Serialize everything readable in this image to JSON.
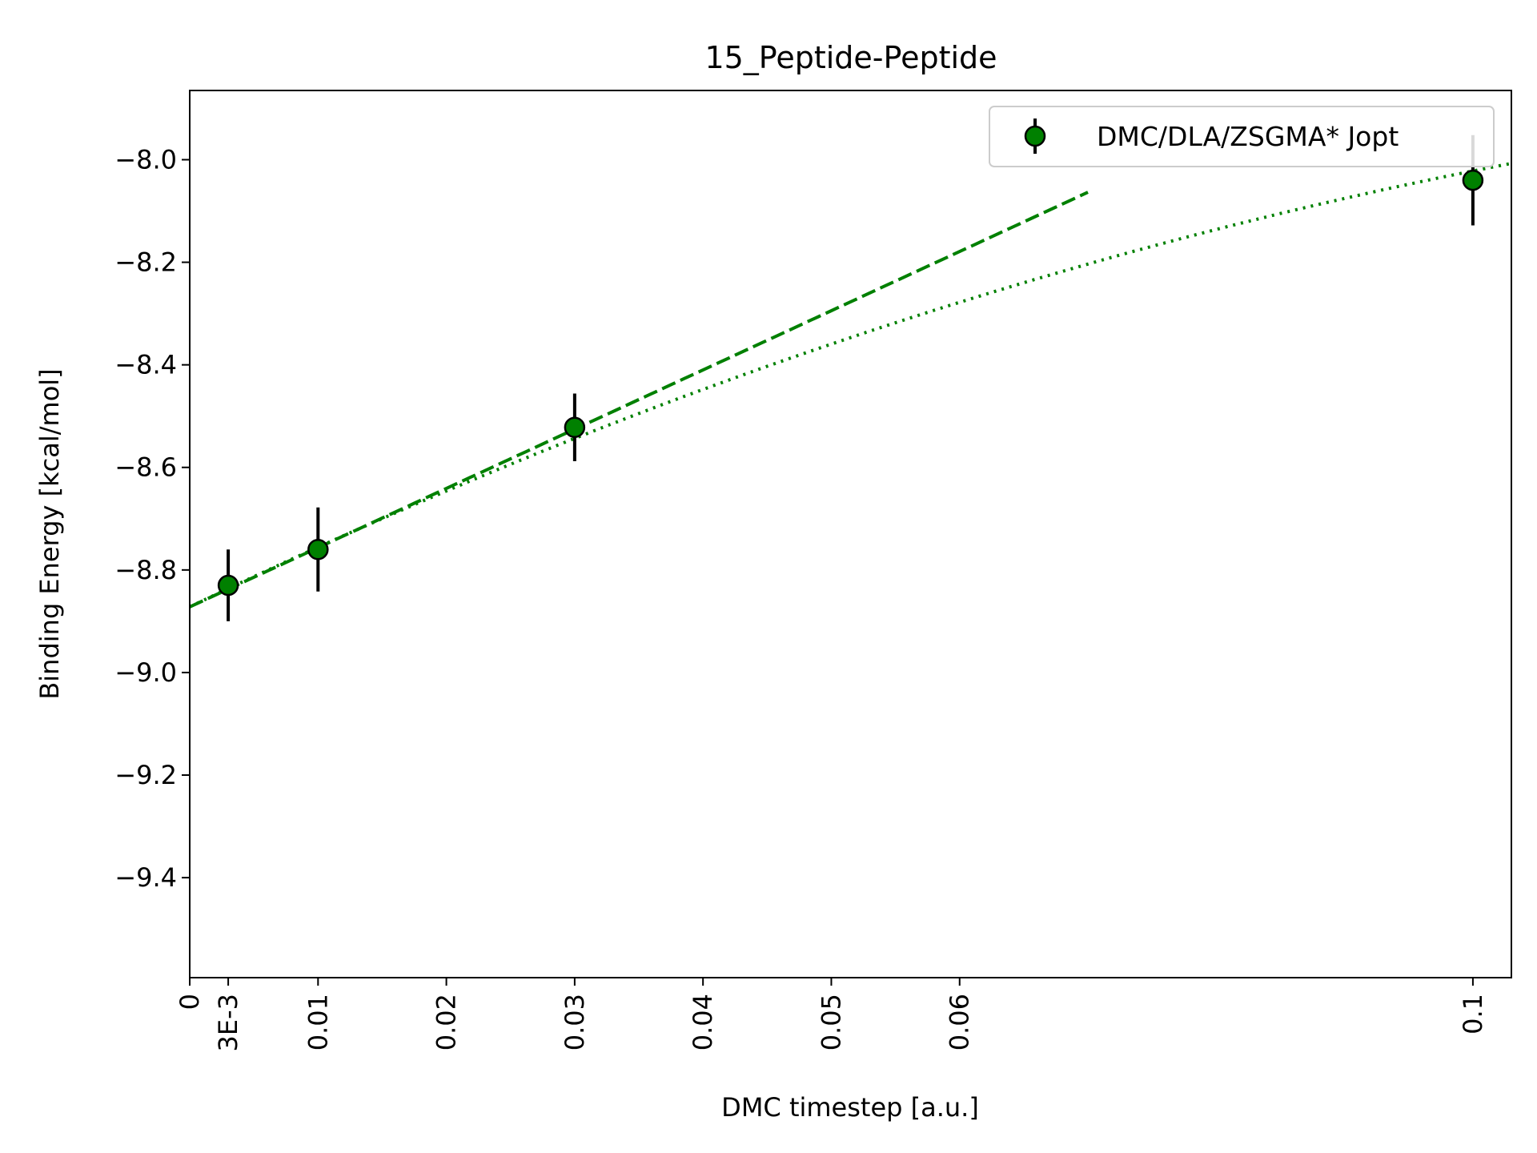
{
  "chart_data": {
    "type": "scatter",
    "title": "15_Peptide-Peptide",
    "xlabel": "DMC timestep [a.u.]",
    "ylabel": "Binding Energy [kcal/mol]",
    "xlim": [
      0,
      0.103
    ],
    "ylim": [
      -9.595,
      -7.865
    ],
    "x_ticks": [
      {
        "value": 0,
        "label": "0"
      },
      {
        "value": 0.003,
        "label": "3E-3"
      },
      {
        "value": 0.01,
        "label": "0.01"
      },
      {
        "value": 0.02,
        "label": "0.02"
      },
      {
        "value": 0.03,
        "label": "0.03"
      },
      {
        "value": 0.04,
        "label": "0.04"
      },
      {
        "value": 0.05,
        "label": "0.05"
      },
      {
        "value": 0.06,
        "label": "0.06"
      },
      {
        "value": 0.1,
        "label": "0.1"
      }
    ],
    "y_ticks": [
      {
        "value": -8.0,
        "label": "−8.0"
      },
      {
        "value": -8.2,
        "label": "−8.2"
      },
      {
        "value": -8.4,
        "label": "−8.4"
      },
      {
        "value": -8.6,
        "label": "−8.6"
      },
      {
        "value": -8.8,
        "label": "−8.8"
      },
      {
        "value": -9.0,
        "label": "−9.0"
      },
      {
        "value": -9.2,
        "label": "−9.2"
      },
      {
        "value": -9.4,
        "label": "−9.4"
      }
    ],
    "series": [
      {
        "name": "DMC/DLA/ZSGMA* Jopt",
        "color": "#008000",
        "marker_edge": "#000000",
        "points": [
          {
            "x": 0.003,
            "y": -8.83,
            "err": 0.07
          },
          {
            "x": 0.01,
            "y": -8.76,
            "err": 0.082
          },
          {
            "x": 0.03,
            "y": -8.522,
            "err": 0.066
          },
          {
            "x": 0.1,
            "y": -8.04,
            "err": 0.088
          }
        ]
      }
    ],
    "fits": [
      {
        "style": "dashed",
        "color": "#008000",
        "kind": "linear",
        "intercept": -8.872,
        "slope": 11.55,
        "x_range": [
          0,
          0.07
        ]
      },
      {
        "style": "dotted",
        "color": "#008000",
        "kind": "quadratic",
        "a": -8.872,
        "b": 12.0,
        "c": -35.0,
        "x_range": [
          0,
          0.103
        ]
      }
    ],
    "legend": {
      "position": "top-right"
    },
    "grid": false
  }
}
